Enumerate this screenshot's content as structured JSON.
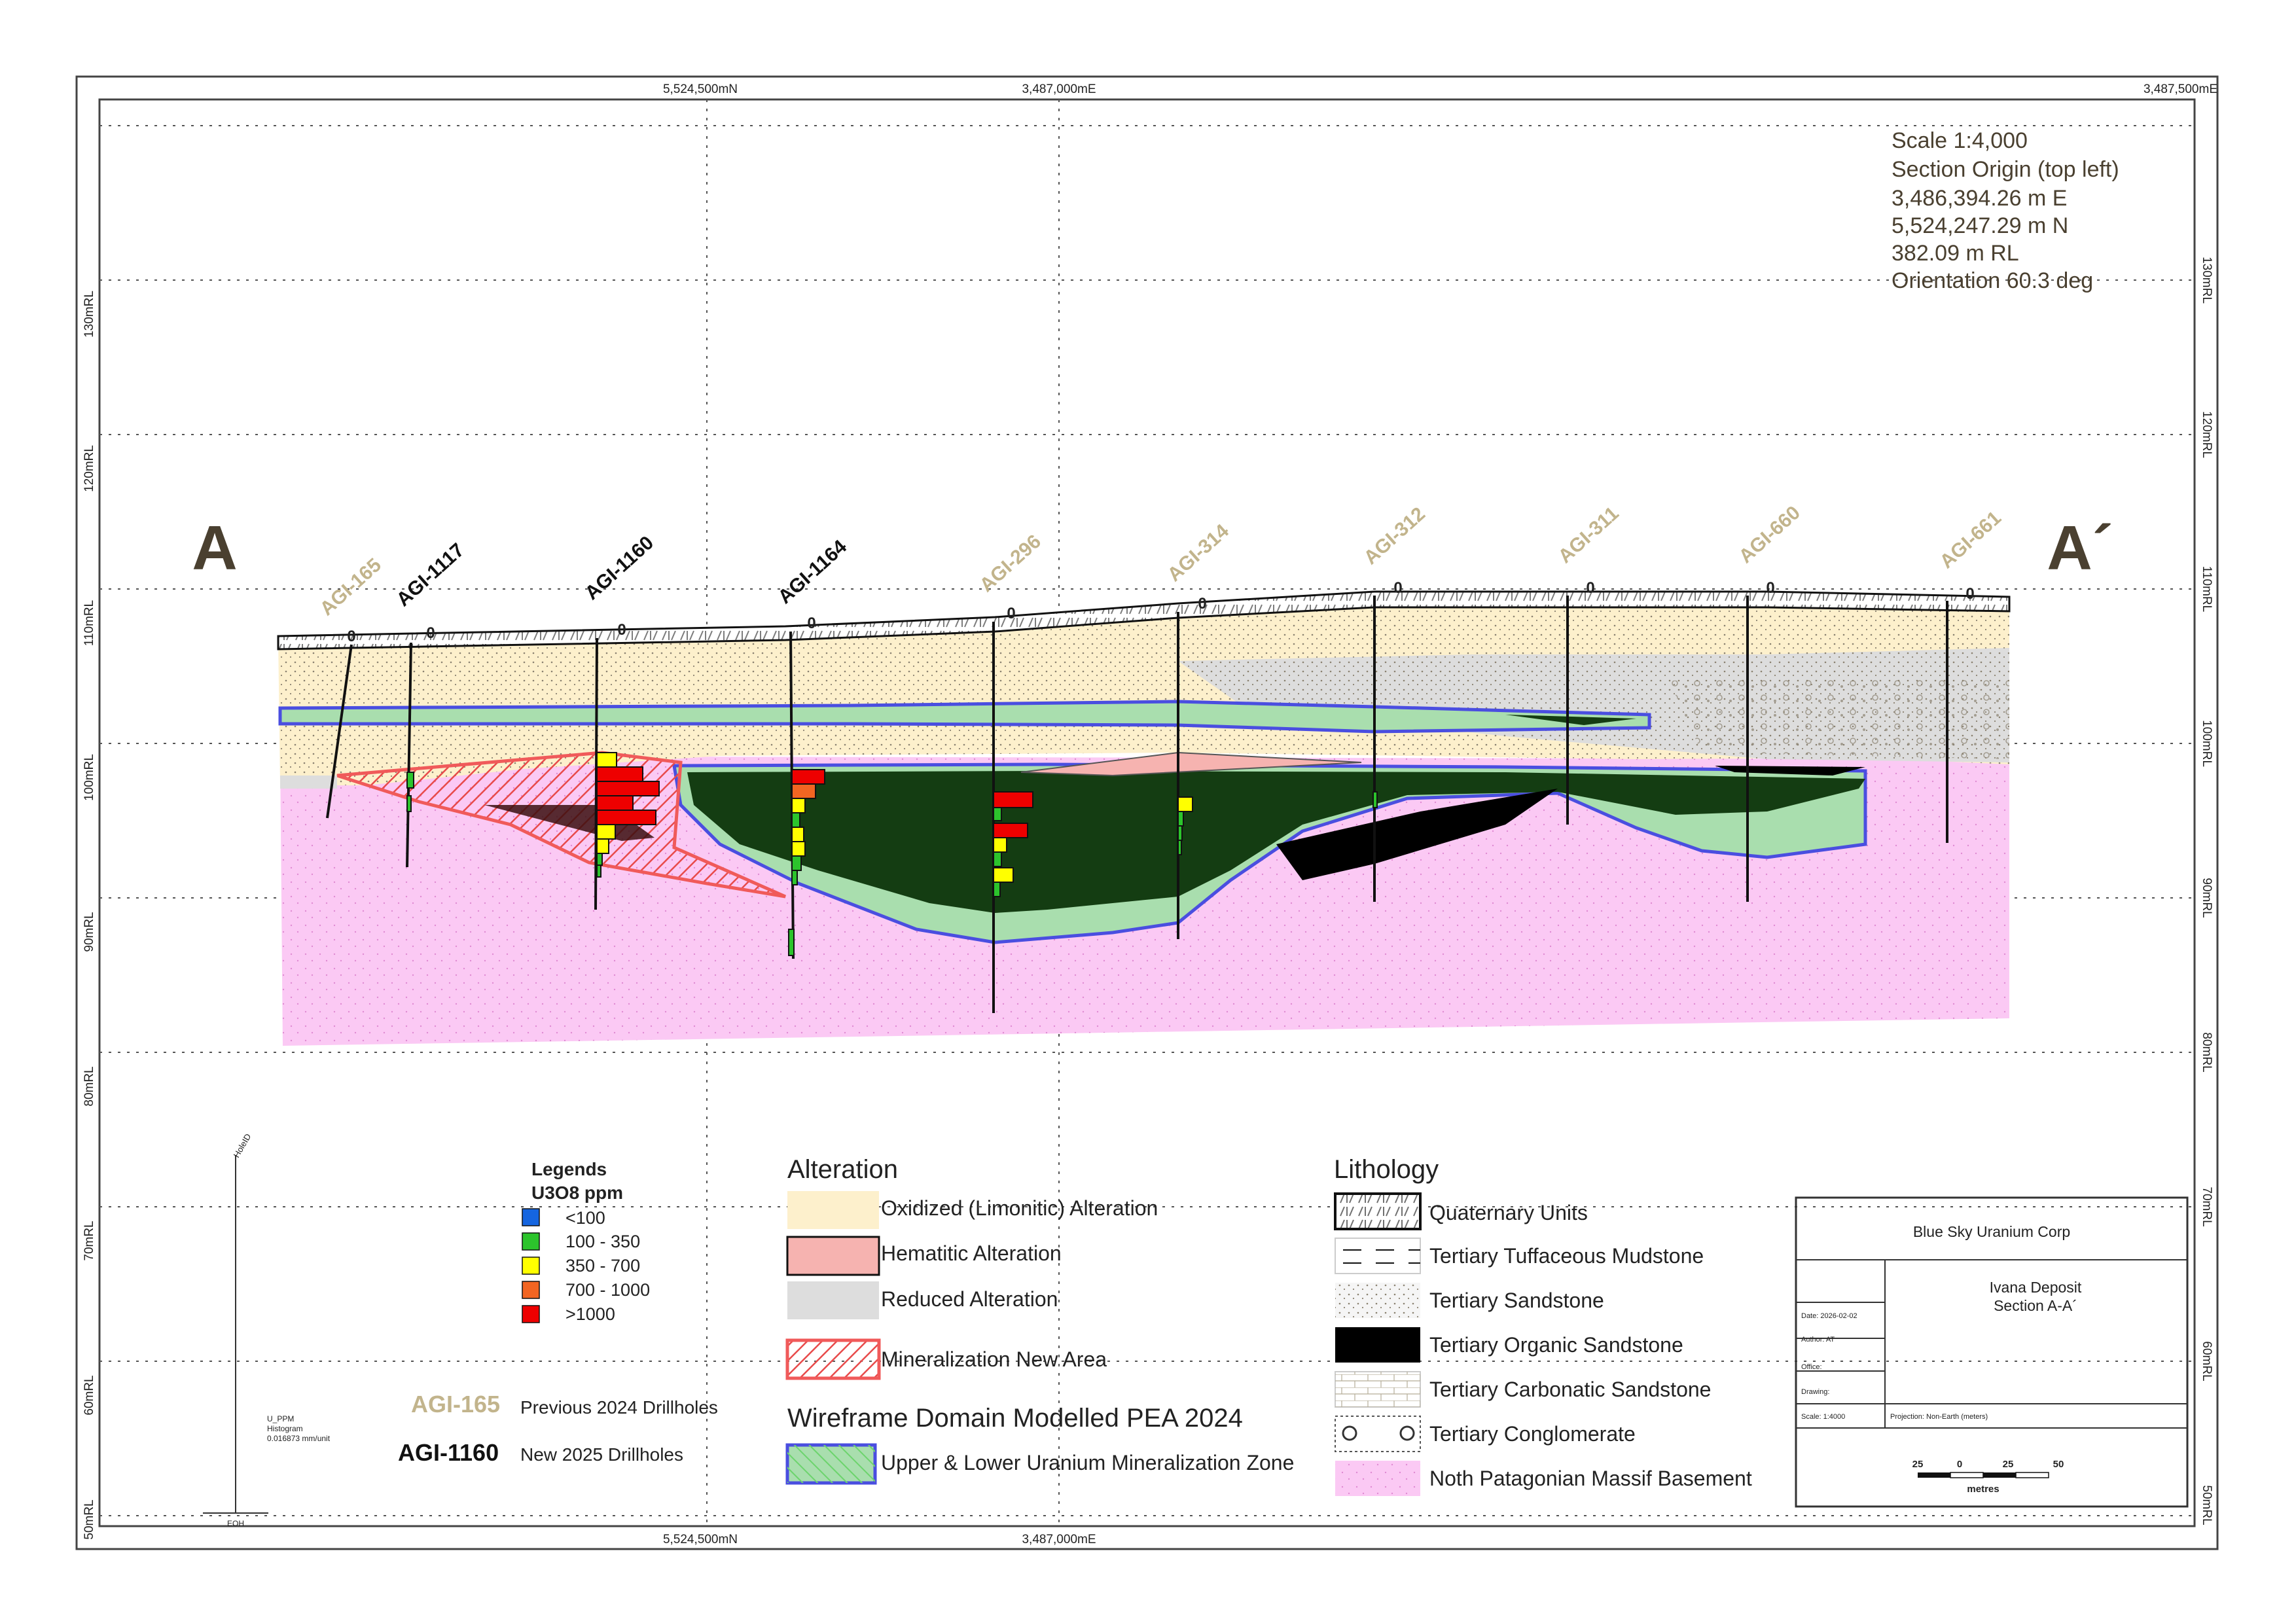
{
  "frame": {
    "top_coords": [
      "5,524,500mN",
      "3,487,000mE",
      "3,487,500mE"
    ],
    "bottom_coords": [
      "5,524,500mN",
      "3,487,000mE"
    ]
  },
  "rl_labels": [
    "130mRL",
    "120mRL",
    "110mRL",
    "100mRL",
    "90mRL",
    "80mRL",
    "70mRL",
    "60mRL",
    "50mRL"
  ],
  "section_ends": {
    "left": "A",
    "right": "A´"
  },
  "scale_info": [
    "Scale 1:4,000",
    "Section Origin (top left)",
    "3,486,394.26 m E",
    "5,524,247.29 m N",
    "382.09 m RL",
    "Orientation 60.3 deg"
  ],
  "drillholes": [
    {
      "id": "AGI-165",
      "kind": "previous"
    },
    {
      "id": "AGI-1117",
      "kind": "new"
    },
    {
      "id": "AGI-1160",
      "kind": "new"
    },
    {
      "id": "AGI-1164",
      "kind": "new"
    },
    {
      "id": "AGI-296",
      "kind": "previous"
    },
    {
      "id": "AGI-314",
      "kind": "previous"
    },
    {
      "id": "AGI-312",
      "kind": "previous"
    },
    {
      "id": "AGI-311",
      "kind": "previous"
    },
    {
      "id": "AGI-660",
      "kind": "previous"
    },
    {
      "id": "AGI-661",
      "kind": "previous"
    }
  ],
  "hole_marker": "0",
  "histogram_key": {
    "top": "HoleID",
    "lines": [
      "U_PPM",
      "Histogram",
      "0.016873 mm/unit"
    ],
    "bottom": "EOH"
  },
  "u3o8_legend": {
    "title": "Legends",
    "subtitle": "U3O8 ppm",
    "items": [
      {
        "label": "<100",
        "color": "#1565e0"
      },
      {
        "label": "100 - 350",
        "color": "#2cc42c"
      },
      {
        "label": "350 - 700",
        "color": "#ffff00"
      },
      {
        "label": "700 - 1000",
        "color": "#f26522"
      },
      {
        "label": ">1000",
        "color": "#ee0000"
      }
    ]
  },
  "drillhole_legend": {
    "previous": {
      "sample": "AGI-165",
      "label": "Previous 2024 Drillholes"
    },
    "new": {
      "sample": "AGI-1160",
      "label": "New 2025 Drillholes"
    }
  },
  "alteration": {
    "title": "Alteration",
    "items": [
      "Oxidized (Limonitic) Alteration",
      "Hematitic Alteration",
      "Reduced Alteration",
      "Mineralization New Area"
    ],
    "wireframe_title": "Wireframe Domain Modelled PEA 2024",
    "wireframe_item": "Upper & Lower Uranium Mineralization Zone"
  },
  "lithology": {
    "title": "Lithology",
    "items": [
      "Quaternary Units",
      "Tertiary Tuffaceous Mudstone",
      "Tertiary Sandstone",
      "Tertiary Organic Sandstone",
      "Tertiary Carbonatic Sandstone",
      "Tertiary Conglomerate",
      "Noth Patagonian Massif Basement"
    ]
  },
  "title_block": {
    "company": "Blue Sky Uranium Corp",
    "project": "Ivana Deposit",
    "section": "Section A-A´",
    "date": "Date: 2026-02-02",
    "author": "Author: AT",
    "office": "Office:",
    "drawing": "Drawing:",
    "scale": "Scale: 1:4000",
    "projection": "Projection: Non-Earth (meters)",
    "bar_ticks": [
      "25",
      "0",
      "25",
      "50"
    ],
    "bar_unit": "metres"
  },
  "colors": {
    "basement": "#fbc9f4",
    "oxidized": "#fdf0cc",
    "hematitic": "#f6b3b0",
    "reduced": "#dddddd",
    "wireframe_fill": "#a9deae",
    "wireframe_line": "#4a4ee0",
    "organic": "#143d12",
    "mineralization_line": "#f05a5a",
    "previous_hole": "#c2b48c",
    "new_hole": "#111111",
    "letter": "#4a4030"
  }
}
